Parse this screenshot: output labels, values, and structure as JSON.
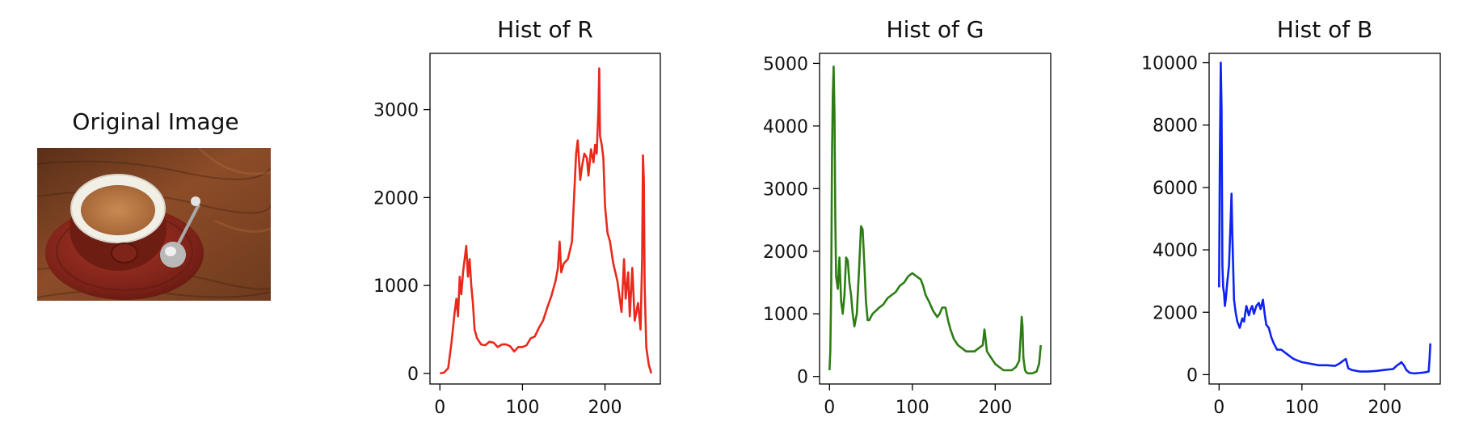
{
  "image_panel": {
    "title": "Original Image"
  },
  "chart_data": [
    {
      "type": "line",
      "title": "Hist of R",
      "color": "#e8291c",
      "xlim": [
        -12,
        267
      ],
      "ylim": [
        -120,
        3640
      ],
      "xticks": [
        0,
        100,
        200
      ],
      "yticks": [
        0,
        1000,
        2000,
        3000
      ],
      "grid": false,
      "x": [
        0,
        5,
        10,
        14,
        18,
        20,
        22,
        24,
        26,
        28,
        30,
        32,
        34,
        36,
        38,
        40,
        42,
        45,
        50,
        55,
        60,
        65,
        70,
        75,
        80,
        85,
        90,
        95,
        100,
        105,
        110,
        115,
        120,
        125,
        130,
        135,
        140,
        143,
        145,
        147,
        150,
        155,
        160,
        165,
        167,
        170,
        172,
        175,
        178,
        180,
        183,
        186,
        188,
        190,
        192,
        193,
        194,
        196,
        198,
        200,
        203,
        206,
        210,
        215,
        220,
        223,
        225,
        228,
        230,
        233,
        236,
        240,
        243,
        245,
        246,
        247,
        248,
        250,
        253,
        256
      ],
      "y": [
        0,
        10,
        60,
        350,
        700,
        850,
        650,
        1100,
        900,
        1150,
        1300,
        1450,
        1100,
        1300,
        1000,
        800,
        500,
        400,
        330,
        320,
        360,
        350,
        300,
        330,
        330,
        310,
        250,
        300,
        300,
        320,
        400,
        420,
        520,
        600,
        750,
        880,
        1050,
        1200,
        1500,
        1150,
        1250,
        1300,
        1500,
        2500,
        2650,
        2200,
        2350,
        2500,
        2450,
        2250,
        2550,
        2400,
        2600,
        2500,
        3000,
        3470,
        2700,
        2600,
        2450,
        1900,
        1600,
        1500,
        1250,
        1050,
        700,
        1300,
        850,
        1150,
        650,
        1200,
        600,
        800,
        500,
        1300,
        2480,
        2200,
        1000,
        300,
        100,
        0
      ]
    },
    {
      "type": "line",
      "title": "Hist of G",
      "color": "#2d7d15",
      "xlim": [
        -12,
        267
      ],
      "ylim": [
        -120,
        5160
      ],
      "xticks": [
        0,
        100,
        200
      ],
      "yticks": [
        0,
        1000,
        2000,
        3000,
        4000,
        5000
      ],
      "grid": false,
      "x": [
        0,
        1,
        2,
        3,
        4,
        5,
        6,
        7,
        8,
        10,
        12,
        14,
        16,
        18,
        20,
        22,
        24,
        26,
        28,
        30,
        33,
        36,
        38,
        40,
        42,
        44,
        46,
        48,
        52,
        56,
        60,
        65,
        70,
        75,
        80,
        85,
        90,
        95,
        100,
        105,
        110,
        113,
        116,
        120,
        125,
        130,
        133,
        136,
        140,
        143,
        146,
        150,
        155,
        160,
        165,
        170,
        175,
        180,
        185,
        187,
        188,
        190,
        195,
        200,
        205,
        210,
        215,
        220,
        225,
        229,
        231,
        232,
        233,
        234,
        236,
        238,
        240,
        245,
        250,
        253,
        255
      ],
      "y": [
        100,
        400,
        1400,
        3500,
        4500,
        4950,
        4200,
        2500,
        1600,
        1400,
        1900,
        1200,
        1000,
        1300,
        1900,
        1850,
        1500,
        1300,
        1000,
        800,
        1000,
        1800,
        2400,
        2350,
        1800,
        1200,
        900,
        900,
        1000,
        1050,
        1100,
        1150,
        1250,
        1300,
        1350,
        1450,
        1500,
        1600,
        1650,
        1600,
        1550,
        1450,
        1300,
        1200,
        1050,
        950,
        1000,
        1100,
        1100,
        900,
        750,
        600,
        500,
        450,
        400,
        400,
        400,
        450,
        500,
        750,
        650,
        400,
        300,
        200,
        150,
        100,
        100,
        100,
        150,
        250,
        700,
        950,
        800,
        300,
        100,
        60,
        50,
        50,
        80,
        200,
        500
      ]
    },
    {
      "type": "line",
      "title": "Hist of B",
      "color": "#0f23f0",
      "xlim": [
        -12,
        267
      ],
      "ylim": [
        -300,
        10300
      ],
      "xticks": [
        0,
        100,
        200
      ],
      "yticks": [
        0,
        2000,
        4000,
        6000,
        8000,
        10000
      ],
      "grid": false,
      "x": [
        0,
        1,
        2,
        3,
        4,
        5,
        6,
        7,
        8,
        10,
        12,
        14,
        15,
        16,
        18,
        20,
        22,
        25,
        28,
        30,
        33,
        36,
        38,
        40,
        42,
        45,
        48,
        50,
        53,
        55,
        57,
        60,
        63,
        66,
        70,
        75,
        80,
        85,
        90,
        95,
        100,
        110,
        120,
        130,
        140,
        145,
        150,
        153,
        156,
        160,
        170,
        180,
        190,
        200,
        210,
        215,
        218,
        220,
        223,
        226,
        230,
        235,
        240,
        245,
        250,
        253,
        254,
        255
      ],
      "y": [
        2800,
        7000,
        10000,
        8500,
        3500,
        2800,
        2600,
        2200,
        2400,
        3000,
        3500,
        5000,
        5800,
        4500,
        2400,
        2000,
        1700,
        1500,
        1800,
        1700,
        2200,
        1900,
        2100,
        2200,
        1950,
        2200,
        2300,
        2100,
        2400,
        1950,
        1600,
        1500,
        1200,
        1000,
        800,
        800,
        700,
        600,
        500,
        450,
        400,
        350,
        300,
        300,
        280,
        350,
        450,
        500,
        200,
        150,
        100,
        100,
        120,
        150,
        180,
        300,
        350,
        400,
        300,
        150,
        60,
        40,
        50,
        60,
        80,
        100,
        500,
        1000
      ]
    }
  ]
}
